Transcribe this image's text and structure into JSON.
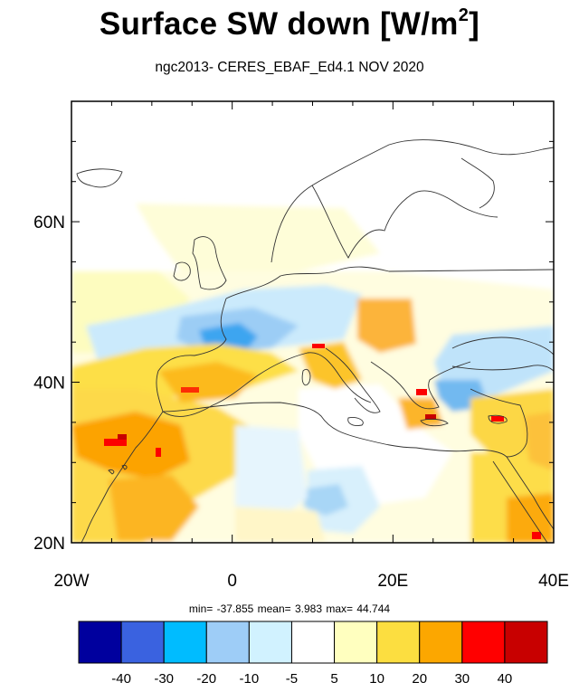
{
  "title": {
    "main": "Surface SW down [W/m",
    "superscript": "2",
    "close": "]"
  },
  "subtitle": "ngc2013- CERES_EBAF_Ed4.1  NOV 2020",
  "stats": {
    "min": "-37.855",
    "mean": "3.983",
    "max": "44.744",
    "text": "min= -37.855  mean=   3.983  max=  44.744"
  },
  "map": {
    "projection": "cylindrical equidistant",
    "lon_range": [
      -20,
      40
    ],
    "lat_range": [
      20,
      75
    ],
    "x_ticks": [
      {
        "value": -20,
        "label": "20W"
      },
      {
        "value": 0,
        "label": "0"
      },
      {
        "value": 20,
        "label": "20E"
      },
      {
        "value": 40,
        "label": "40E"
      }
    ],
    "y_ticks": [
      {
        "value": 20,
        "label": "20N"
      },
      {
        "value": 40,
        "label": "40N"
      },
      {
        "value": 60,
        "label": "60N"
      }
    ],
    "regions": [
      {
        "name": "iberia-west-africa",
        "level": "10-20",
        "color": "#fddf47"
      },
      {
        "name": "atlantic-northwest",
        "level": "5-10",
        "color": "#fdfcbf"
      },
      {
        "name": "france-negative",
        "level": "-20--10",
        "color": "#3ea5f0"
      },
      {
        "name": "central-med",
        "level": "-5-5",
        "color": "#ffffff"
      },
      {
        "name": "balkans-positive",
        "level": "20-30",
        "color": "#fca303"
      },
      {
        "name": "morocco-hotspot",
        "level": "30-40",
        "color": "#fc0000"
      }
    ]
  },
  "colorbar": {
    "colors": [
      "#00009e",
      "#3a62e0",
      "#00bcff",
      "#9ecdf7",
      "#d1f2ff",
      "#ffffff",
      "#ffffbf",
      "#fcde40",
      "#fca700",
      "#ff0000",
      "#c80000"
    ],
    "labels": [
      "-40",
      "-30",
      "-20",
      "-10",
      "-5",
      "5",
      "10",
      "20",
      "30",
      "40"
    ]
  }
}
